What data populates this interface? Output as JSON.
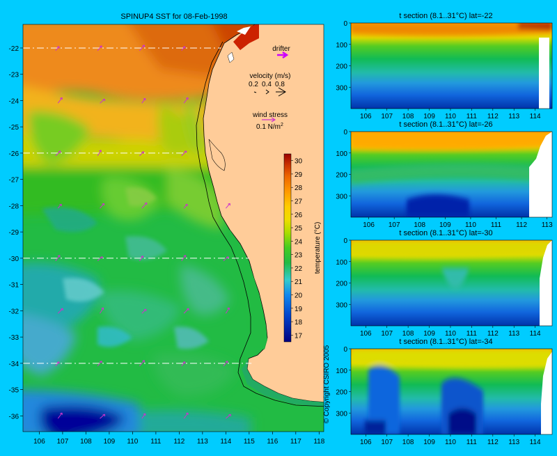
{
  "map": {
    "title": "SPINUP4 SST for 08-Feb-1998",
    "x_ticks": [
      "106",
      "107",
      "108",
      "109",
      "110",
      "111",
      "112",
      "113",
      "114",
      "115",
      "116",
      "117",
      "118"
    ],
    "y_ticks": [
      "-22",
      "-23",
      "-24",
      "-25",
      "-26",
      "-27",
      "-28",
      "-29",
      "-30",
      "-31",
      "-32",
      "-33",
      "-34",
      "-35",
      "-36"
    ],
    "x_range": [
      105.3,
      118.2
    ],
    "y_range": [
      -36.6,
      -21.1
    ],
    "section_lats": [
      -22,
      -26,
      -30,
      -34
    ],
    "copyright": "© Copyright CSIRO 2005",
    "land_color": "#ffcc99",
    "vector_color": "#cc33cc",
    "drifter_color": "#cc00ff"
  },
  "legend": {
    "drifter": "drifter",
    "velocity_title": "velocity (m/s)",
    "velocity_values": [
      "0.2",
      "0.4",
      "0.8"
    ],
    "wind_title": "wind stress",
    "wind_value": "0.1 N/m",
    "wind_exp": "2"
  },
  "colorbar": {
    "label": "temperature (°C)",
    "ticks": [
      "30",
      "29",
      "28",
      "27",
      "26",
      "25",
      "24",
      "23",
      "22",
      "21",
      "20",
      "19",
      "18",
      "17"
    ],
    "range": [
      16.5,
      30.5
    ]
  },
  "sections": [
    {
      "title": "t section (8.1..31°C) lat=-22",
      "x_ticks": [
        "106",
        "107",
        "108",
        "109",
        "110",
        "111",
        "112",
        "113",
        "114"
      ],
      "x_range": [
        105.3,
        114.8
      ],
      "y_ticks": [
        "0",
        "100",
        "200",
        "300"
      ],
      "y_range": [
        0,
        400
      ]
    },
    {
      "title": "t section (8.1..31°C) lat=-26",
      "x_ticks": [
        "106",
        "107",
        "108",
        "109",
        "110",
        "111",
        "112",
        "113"
      ],
      "x_range": [
        105.3,
        113.2
      ],
      "y_ticks": [
        "0",
        "100",
        "200",
        "300"
      ],
      "y_range": [
        0,
        400
      ]
    },
    {
      "title": "t section (8.1..31°C) lat=-30",
      "x_ticks": [
        "106",
        "107",
        "108",
        "109",
        "110",
        "111",
        "112",
        "113",
        "114"
      ],
      "x_range": [
        105.3,
        114.8
      ],
      "y_ticks": [
        "0",
        "100",
        "200",
        "300"
      ],
      "y_range": [
        0,
        400
      ]
    },
    {
      "title": "t section (8.1..31°C) lat=-34",
      "x_ticks": [
        "106",
        "107",
        "108",
        "109",
        "110",
        "111",
        "112",
        "113",
        "114"
      ],
      "x_range": [
        105.3,
        114.8
      ],
      "y_ticks": [
        "0",
        "100",
        "200",
        "300"
      ],
      "y_range": [
        0,
        400
      ]
    }
  ]
}
